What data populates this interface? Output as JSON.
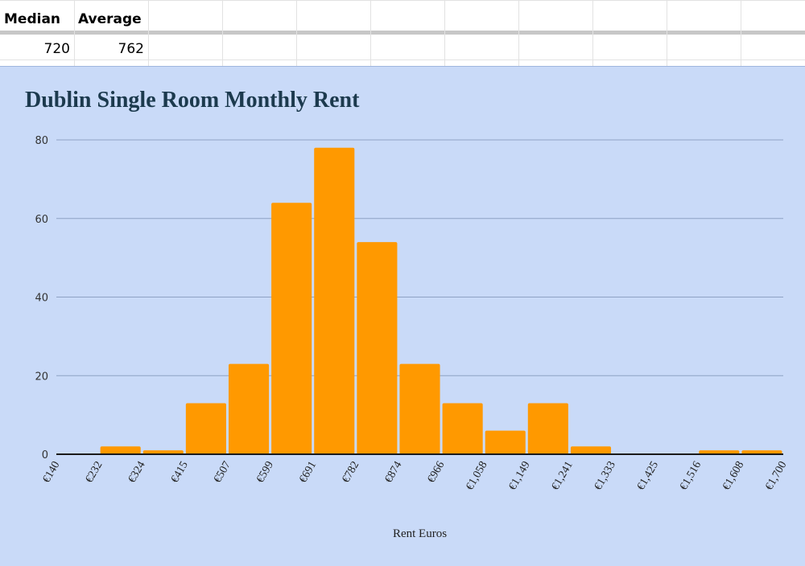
{
  "sheet": {
    "headers": [
      "Median",
      "Average"
    ],
    "values": [
      "720",
      "762"
    ]
  },
  "chart_data": {
    "type": "bar",
    "title": "Dublin Single Room Monthly Rent",
    "xlabel": "Rent Euros",
    "ylabel": "",
    "x_ticks": [
      "€140",
      "€232",
      "€324",
      "€415",
      "€507",
      "€599",
      "€691",
      "€782",
      "€874",
      "€966",
      "€1,058",
      "€1,149",
      "€1,241",
      "€1,333",
      "€1,425",
      "€1,516",
      "€1,608",
      "€1,700"
    ],
    "values": [
      0,
      2,
      1,
      13,
      23,
      64,
      78,
      54,
      23,
      13,
      6,
      13,
      2,
      0,
      0,
      1,
      1
    ],
    "y_ticks": [
      "0",
      "20",
      "40",
      "60",
      "80"
    ],
    "ylim": [
      0,
      80
    ],
    "grid": true,
    "legend": "none",
    "colors": {
      "bar": "#ff9900",
      "background": "#c9daf8",
      "gridline": "#8ea2c4",
      "title": "#1c3a4e"
    }
  }
}
